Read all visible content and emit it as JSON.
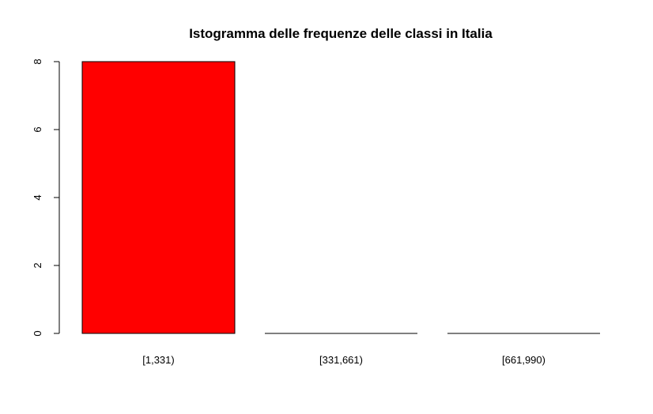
{
  "chart_data": {
    "type": "bar",
    "title": "Istogramma delle frequenze delle classi in Italia",
    "xlabel": "",
    "ylabel": "",
    "categories": [
      "[1,331)",
      "[331,661)",
      "[661,990)"
    ],
    "values": [
      8,
      0,
      0
    ],
    "ylim": [
      0,
      8
    ],
    "yticks": [
      0,
      2,
      4,
      6,
      8
    ],
    "grid": false,
    "legend": "none",
    "bar_color": "#ff0000",
    "bar_border_color": "#000000"
  }
}
